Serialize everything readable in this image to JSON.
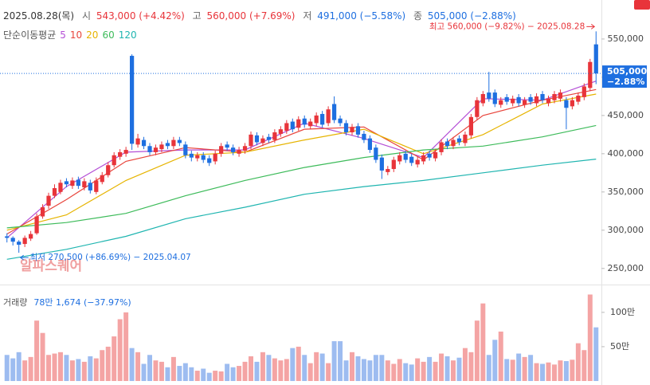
{
  "chart_data": {
    "type": "candlestick",
    "header": {
      "date": "2025.08.28(목)",
      "open_label": "시",
      "open": "543,000 (+4.42%)",
      "high_label": "고",
      "high": "560,000 (+7.69%)",
      "low_label": "저",
      "low": "491,000 (−5.58%)",
      "close_label": "종",
      "close": "505,000 (−2.88%)"
    },
    "ma_title": "단순이동평균",
    "max_annotation": "최고 560,000 (−9.82%) − 2025.08.28",
    "min_annotation": "최저 270,500 (+86.69%) − 2025.04.07",
    "watermark": "알파스퀘어",
    "price_label": "505,000",
    "price_change": "−2.88%",
    "up_color": "#e8343a",
    "down_color": "#1e6fe0",
    "ylim": [
      231000,
      601000
    ],
    "yticks": [
      {
        "value": 250000,
        "label": "250,000"
      },
      {
        "value": 300000,
        "label": "300,000"
      },
      {
        "value": 350000,
        "label": "350,000"
      },
      {
        "value": 400000,
        "label": "400,000"
      },
      {
        "value": 450000,
        "label": "450,000"
      },
      {
        "value": 500000,
        "label": "500,000"
      },
      {
        "value": 550000,
        "label": "550,000"
      }
    ],
    "candles": [
      [
        292000,
        296000,
        284000,
        290000
      ],
      [
        290000,
        292000,
        280000,
        285000
      ],
      [
        285000,
        287000,
        270500,
        281000
      ],
      [
        282000,
        293000,
        278000,
        290000
      ],
      [
        289000,
        299000,
        286000,
        295000
      ],
      [
        296000,
        322000,
        294000,
        318000
      ],
      [
        318000,
        334000,
        315000,
        330000
      ],
      [
        332000,
        349000,
        328000,
        345000
      ],
      [
        345000,
        360000,
        342000,
        355000
      ],
      [
        350000,
        366000,
        347000,
        362000
      ],
      [
        364000,
        368000,
        356000,
        360000
      ],
      [
        358000,
        369000,
        354000,
        365000
      ],
      [
        366000,
        370000,
        354000,
        358000
      ],
      [
        356000,
        368000,
        352000,
        364000
      ],
      [
        362000,
        366000,
        348000,
        352000
      ],
      [
        350000,
        369000,
        347000,
        365000
      ],
      [
        363000,
        376000,
        360000,
        372000
      ],
      [
        372000,
        389000,
        369000,
        385000
      ],
      [
        385000,
        402000,
        382000,
        398000
      ],
      [
        396000,
        406000,
        392000,
        402000
      ],
      [
        400000,
        409000,
        396000,
        405000
      ],
      [
        528000,
        530000,
        405000,
        413000
      ],
      [
        412000,
        426000,
        408000,
        420000
      ],
      [
        418000,
        422000,
        406000,
        410000
      ],
      [
        410000,
        414000,
        398000,
        402000
      ],
      [
        402000,
        412000,
        398000,
        408000
      ],
      [
        406000,
        416000,
        402000,
        412000
      ],
      [
        414000,
        418000,
        406000,
        410000
      ],
      [
        410000,
        422000,
        406000,
        418000
      ],
      [
        418000,
        422000,
        410000,
        414000
      ],
      [
        412000,
        416000,
        394000,
        398000
      ],
      [
        400000,
        404000,
        390000,
        395000
      ],
      [
        394000,
        402000,
        390000,
        398000
      ],
      [
        398000,
        402000,
        388000,
        392000
      ],
      [
        394000,
        398000,
        384000,
        388000
      ],
      [
        390000,
        404000,
        386000,
        400000
      ],
      [
        400000,
        414000,
        396000,
        410000
      ],
      [
        412000,
        416000,
        404000,
        408000
      ],
      [
        408000,
        412000,
        398000,
        402000
      ],
      [
        400000,
        409000,
        396000,
        405000
      ],
      [
        404000,
        414000,
        400000,
        410000
      ],
      [
        410000,
        429000,
        406000,
        425000
      ],
      [
        424000,
        428000,
        411000,
        415000
      ],
      [
        414000,
        424000,
        410000,
        420000
      ],
      [
        422000,
        426000,
        414000,
        418000
      ],
      [
        418000,
        432000,
        414000,
        428000
      ],
      [
        426000,
        436000,
        422000,
        432000
      ],
      [
        430000,
        444000,
        426000,
        440000
      ],
      [
        442000,
        446000,
        428000,
        432000
      ],
      [
        434000,
        449000,
        430000,
        445000
      ],
      [
        446000,
        450000,
        434000,
        438000
      ],
      [
        436000,
        446000,
        432000,
        442000
      ],
      [
        440000,
        454000,
        436000,
        450000
      ],
      [
        452000,
        456000,
        434000,
        438000
      ],
      [
        440000,
        462000,
        436000,
        458000
      ],
      [
        465000,
        475000,
        440000,
        444000
      ],
      [
        446000,
        450000,
        436000,
        440000
      ],
      [
        440000,
        444000,
        424000,
        428000
      ],
      [
        428000,
        439000,
        424000,
        435000
      ],
      [
        436000,
        440000,
        421000,
        425000
      ],
      [
        426000,
        430000,
        414000,
        418000
      ],
      [
        420000,
        424000,
        401000,
        405000
      ],
      [
        408000,
        412000,
        388000,
        392000
      ],
      [
        395000,
        399000,
        367000,
        378000
      ],
      [
        376000,
        384000,
        372000,
        380000
      ],
      [
        380000,
        396000,
        376000,
        392000
      ],
      [
        390000,
        402000,
        386000,
        398000
      ],
      [
        400000,
        404000,
        388000,
        392000
      ],
      [
        396000,
        400000,
        384000,
        388000
      ],
      [
        386000,
        396000,
        382000,
        392000
      ],
      [
        390000,
        402000,
        386000,
        398000
      ],
      [
        400000,
        404000,
        391000,
        395000
      ],
      [
        394000,
        406000,
        390000,
        402000
      ],
      [
        402000,
        419000,
        398000,
        415000
      ],
      [
        416000,
        420000,
        406000,
        410000
      ],
      [
        410000,
        422000,
        406000,
        418000
      ],
      [
        420000,
        424000,
        411000,
        415000
      ],
      [
        414000,
        429000,
        410000,
        425000
      ],
      [
        424000,
        452000,
        420000,
        448000
      ],
      [
        448000,
        474000,
        444000,
        470000
      ],
      [
        466000,
        482000,
        462000,
        478000
      ],
      [
        480000,
        507000,
        468000,
        472000
      ],
      [
        480000,
        484000,
        461000,
        465000
      ],
      [
        464000,
        474000,
        460000,
        470000
      ],
      [
        474000,
        478000,
        464000,
        468000
      ],
      [
        466000,
        476000,
        462000,
        472000
      ],
      [
        474000,
        478000,
        462000,
        466000
      ],
      [
        464000,
        474000,
        460000,
        470000
      ],
      [
        474000,
        478000,
        464000,
        468000
      ],
      [
        466000,
        479000,
        462000,
        475000
      ],
      [
        478000,
        482000,
        466000,
        470000
      ],
      [
        466000,
        476000,
        462000,
        472000
      ],
      [
        470000,
        482000,
        466000,
        478000
      ],
      [
        472000,
        484000,
        468000,
        480000
      ],
      [
        470000,
        474000,
        432000,
        460000
      ],
      [
        462000,
        474000,
        458000,
        470000
      ],
      [
        468000,
        480000,
        464000,
        476000
      ],
      [
        474000,
        492000,
        470000,
        488000
      ],
      [
        486000,
        524000,
        482000,
        520000
      ],
      [
        543000,
        560000,
        491000,
        505000
      ]
    ],
    "ma_x": [
      0,
      10,
      20,
      30,
      40,
      50,
      60,
      70,
      80,
      90,
      99
    ],
    "ma_series": [
      {
        "name": "5",
        "color": "#b44fd6",
        "values": [
          290000,
          357000,
          402000,
          405000,
          405000,
          440000,
          420000,
          395000,
          472000,
          470000,
          495000
        ]
      },
      {
        "name": "10",
        "color": "#e8453c",
        "values": [
          295000,
          340000,
          390000,
          408000,
          402000,
          432000,
          435000,
          392000,
          450000,
          470000,
          484000
        ]
      },
      {
        "name": "20",
        "color": "#e6b400",
        "values": [
          300000,
          320000,
          365000,
          398000,
          402000,
          418000,
          432000,
          400000,
          425000,
          465000,
          478000
        ]
      },
      {
        "name": "60",
        "color": "#3dbb5a",
        "values": [
          303000,
          310000,
          322000,
          345000,
          365000,
          382000,
          395000,
          405000,
          410000,
          422000,
          437000
        ]
      },
      {
        "name": "120",
        "color": "#1fb5b0",
        "values": [
          262000,
          275000,
          292000,
          315000,
          330000,
          347000,
          357000,
          365000,
          375000,
          385000,
          393000
        ]
      }
    ],
    "volume_title": "거래량",
    "volume_value": "78만 1,674 (−37.97%)",
    "vlim": [
      0,
      1370000
    ],
    "vticks": [
      {
        "value": 1000000,
        "label": "100만"
      },
      {
        "value": 500000,
        "label": "50만"
      }
    ],
    "volume": [
      380000,
      330000,
      420000,
      300000,
      350000,
      880000,
      700000,
      380000,
      400000,
      420000,
      380000,
      300000,
      320000,
      280000,
      360000,
      330000,
      450000,
      500000,
      650000,
      900000,
      1000000,
      480000,
      420000,
      250000,
      380000,
      300000,
      280000,
      200000,
      350000,
      220000,
      260000,
      200000,
      150000,
      180000,
      120000,
      150000,
      140000,
      250000,
      200000,
      220000,
      280000,
      360000,
      280000,
      420000,
      380000,
      330000,
      300000,
      320000,
      480000,
      500000,
      380000,
      260000,
      420000,
      400000,
      260000,
      580000,
      580000,
      300000,
      420000,
      360000,
      320000,
      300000,
      380000,
      380000,
      300000,
      250000,
      320000,
      260000,
      240000,
      330000,
      280000,
      350000,
      280000,
      400000,
      360000,
      300000,
      340000,
      480000,
      420000,
      880000,
      1130000,
      380000,
      600000,
      720000,
      320000,
      310000,
      400000,
      350000,
      380000,
      260000,
      250000,
      270000,
      240000,
      300000,
      290000,
      310000,
      550000,
      450000,
      1260000,
      781674
    ]
  }
}
